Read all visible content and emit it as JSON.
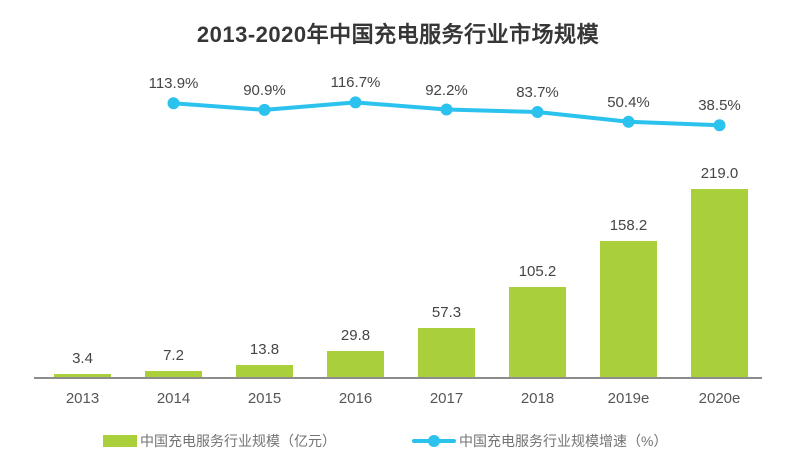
{
  "title": "2013-2020年中国充电服务行业市场规模",
  "colors": {
    "bar": "#a9cf3b",
    "line": "#2bc2ee",
    "title_text": "#363636",
    "value_label_text": "#454545",
    "axis_label_text": "#565656",
    "axis_line": "#8c8c8c",
    "legend_text": "#737373",
    "background": "#ffffff"
  },
  "chart_data": {
    "type": "bar",
    "subtype": "bar-line-combo",
    "title": "2013-2020年中国充电服务行业市场规模",
    "categories": [
      "2013",
      "2014",
      "2015",
      "2016",
      "2017",
      "2018",
      "2019e",
      "2020e"
    ],
    "series": [
      {
        "name": "中国充电服务行业规模（亿元）",
        "type": "bar",
        "unit": "亿元",
        "color": "#a9cf3b",
        "values": [
          3.4,
          7.2,
          13.8,
          29.8,
          57.3,
          105.2,
          158.2,
          219.0
        ],
        "value_labels": [
          "3.4",
          "7.2",
          "13.8",
          "29.8",
          "57.3",
          "105.2",
          "158.2",
          "219.0"
        ]
      },
      {
        "name": "中国充电服务行业规模增速（%）",
        "type": "line",
        "unit": "%",
        "color": "#2bc2ee",
        "x_categories": [
          "2014",
          "2015",
          "2016",
          "2017",
          "2018",
          "2019e",
          "2020e"
        ],
        "values": [
          113.9,
          90.9,
          116.7,
          92.2,
          83.7,
          50.4,
          38.5
        ],
        "value_labels": [
          "113.9%",
          "90.9%",
          "116.7%",
          "92.2%",
          "83.7%",
          "50.4%",
          "38.5%"
        ]
      }
    ],
    "grid": false,
    "y_axis_shown": false,
    "value_labels_shown": true,
    "legend_position": "bottom"
  },
  "legend": {
    "bar_label": "中国充电服务行业规模（亿元）",
    "line_label": "中国充电服务行业规模增速（%）"
  }
}
